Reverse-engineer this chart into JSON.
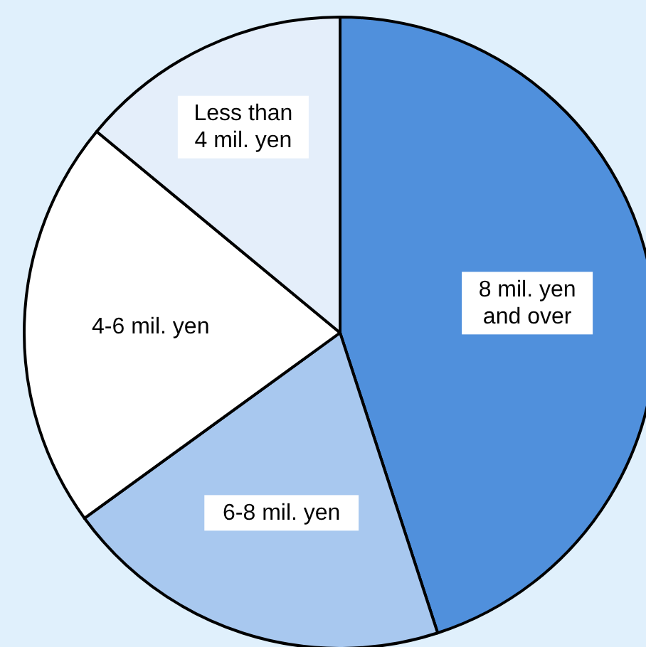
{
  "chart_data": {
    "type": "pie",
    "categories": [
      "8 mil. yen\nand over",
      "6-8 mil. yen",
      "4-6 mil. yen",
      "Less than\n4 mil. yen"
    ],
    "values": [
      45,
      20,
      21,
      14
    ],
    "colors": [
      "#5090dc",
      "#a8c8ef",
      "#ffffff",
      "#e4eefa"
    ]
  }
}
